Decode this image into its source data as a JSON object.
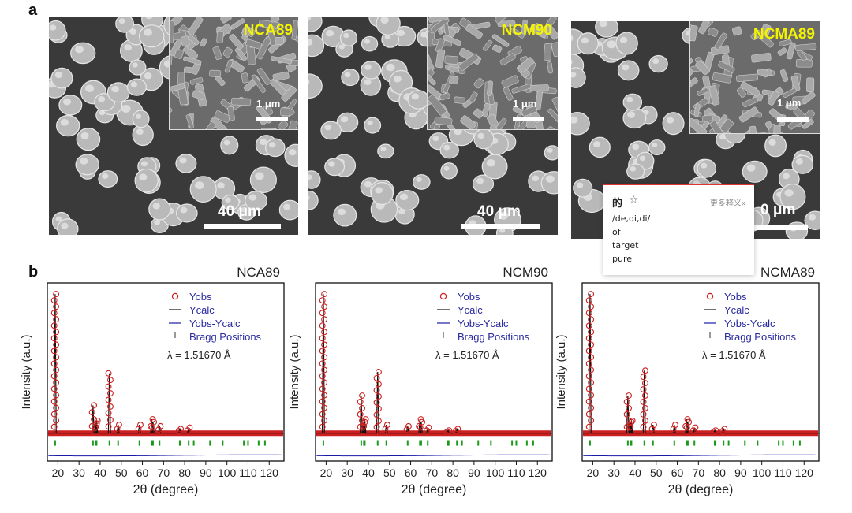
{
  "figure": {
    "panel_a_label": "a",
    "panel_b_label": "b"
  },
  "sem_images": [
    {
      "inset_label": "NCA89",
      "inset_scale": "1 μm",
      "main_scale": "40 μm"
    },
    {
      "inset_label": "NCM90",
      "inset_scale": "1 μm",
      "main_scale": "40 μm"
    },
    {
      "inset_label": "NCMA89",
      "inset_scale": "1 μm",
      "main_scale": "0 μm"
    }
  ],
  "legend": {
    "yobs": "Yobs",
    "ycalc": "Ycalc",
    "diff": "Yobs-Ycalc",
    "bragg": "Bragg Positions",
    "lambda": "λ = 1.51670  Å"
  },
  "colors": {
    "yobs": "#cc1f1f",
    "ycalc": "#111111",
    "diff": "#1a1aa8",
    "bragg": "#1a9a1a",
    "inset_label": "#f4f400",
    "legend_text": "#2a2aa0"
  },
  "chart_data": [
    {
      "type": "scatter",
      "title": "NCA89",
      "xlabel": "2θ (degree)",
      "ylabel": "Intensity (a.u.)",
      "xlim": [
        15,
        127
      ],
      "ylim": [
        -0.2,
        1.08
      ],
      "xticks": [
        20,
        30,
        40,
        50,
        60,
        70,
        80,
        90,
        100,
        110,
        120
      ],
      "peaks": [
        [
          18.7,
          1.0
        ],
        [
          36.6,
          0.2
        ],
        [
          37.9,
          0.07
        ],
        [
          38.3,
          0.09
        ],
        [
          44.4,
          0.43
        ],
        [
          48.5,
          0.06
        ],
        [
          58.6,
          0.06
        ],
        [
          64.4,
          0.1
        ],
        [
          65.0,
          0.08
        ],
        [
          68.1,
          0.05
        ],
        [
          77.7,
          0.03
        ],
        [
          81.9,
          0.04
        ]
      ],
      "bragg_positions": [
        18.7,
        36.6,
        37.9,
        38.3,
        44.4,
        48.5,
        58.6,
        64.4,
        65.0,
        68.1,
        77.7,
        78.0,
        81.9,
        84.3,
        92.0,
        98.0,
        108.0,
        110.0,
        115.0,
        118.0
      ]
    },
    {
      "type": "scatter",
      "title": "NCM90",
      "xlabel": "2θ (degree)",
      "ylabel": "Intensity (a.u.)",
      "xlim": [
        15,
        127
      ],
      "ylim": [
        -0.2,
        1.08
      ],
      "xticks": [
        20,
        30,
        40,
        50,
        60,
        70,
        80,
        90,
        100,
        110,
        120
      ],
      "peaks": [
        [
          18.7,
          1.0
        ],
        [
          36.6,
          0.27
        ],
        [
          37.9,
          0.08
        ],
        [
          38.3,
          0.1
        ],
        [
          44.4,
          0.44
        ],
        [
          48.5,
          0.06
        ],
        [
          58.6,
          0.05
        ],
        [
          64.4,
          0.1
        ],
        [
          65.0,
          0.08
        ],
        [
          68.1,
          0.04
        ],
        [
          77.7,
          0.02
        ],
        [
          81.9,
          0.03
        ]
      ],
      "bragg_positions": [
        18.7,
        36.6,
        37.9,
        38.3,
        44.4,
        48.5,
        58.6,
        64.4,
        65.0,
        68.1,
        77.7,
        78.0,
        81.9,
        84.3,
        92.0,
        98.0,
        108.0,
        110.0,
        115.0,
        118.0
      ]
    },
    {
      "type": "scatter",
      "title": "NCMA89",
      "xlabel": "2θ (degree)",
      "ylabel": "Intensity (a.u.)",
      "xlim": [
        15,
        127
      ],
      "ylim": [
        -0.2,
        1.08
      ],
      "xticks": [
        20,
        30,
        40,
        50,
        60,
        70,
        80,
        90,
        100,
        110,
        120
      ],
      "peaks": [
        [
          18.7,
          1.0
        ],
        [
          36.6,
          0.27
        ],
        [
          37.9,
          0.08
        ],
        [
          38.3,
          0.09
        ],
        [
          44.4,
          0.45
        ],
        [
          48.5,
          0.06
        ],
        [
          58.6,
          0.06
        ],
        [
          64.4,
          0.1
        ],
        [
          65.0,
          0.08
        ],
        [
          68.1,
          0.04
        ],
        [
          77.7,
          0.02
        ],
        [
          81.9,
          0.03
        ]
      ],
      "bragg_positions": [
        18.7,
        36.6,
        37.9,
        38.3,
        44.4,
        48.5,
        58.6,
        64.4,
        65.0,
        68.1,
        77.7,
        78.0,
        81.9,
        84.3,
        92.0,
        98.0,
        108.0,
        110.0,
        115.0,
        118.0
      ]
    }
  ],
  "dictionary_popup": {
    "word": "的",
    "more": "更多释义»",
    "pronunciation": "/de,di,di/",
    "meanings": [
      "of",
      "target",
      "pure"
    ]
  }
}
